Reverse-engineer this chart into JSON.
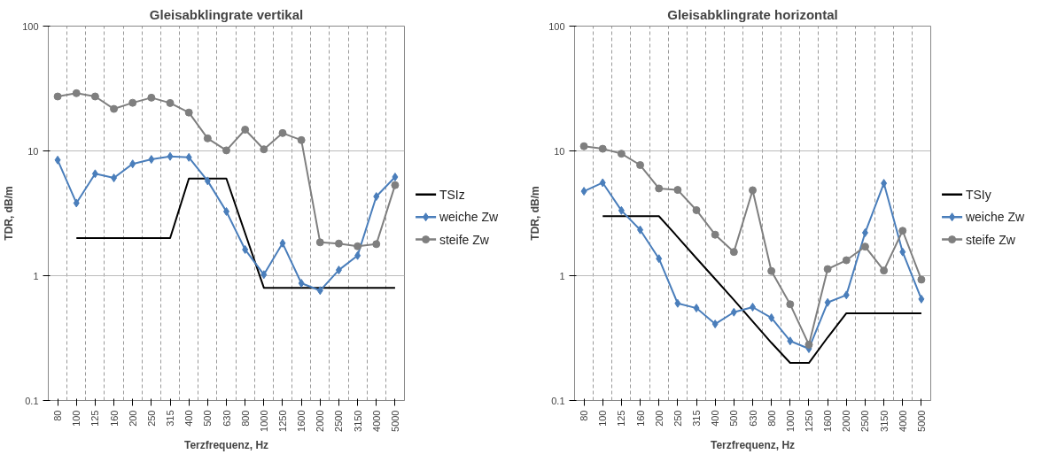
{
  "chart_data": [
    {
      "type": "line",
      "title": "Gleisabklingrate vertikal",
      "xlabel": "Terzfrequenz, Hz",
      "ylabel": "TDR, dB/m",
      "log": true,
      "grid": true,
      "legend": "right",
      "ylim": [
        0.1,
        100
      ],
      "yticks": [
        0.1,
        1,
        10,
        100
      ],
      "categories": [
        "80",
        "100",
        "125",
        "160",
        "200",
        "250",
        "315",
        "400",
        "500",
        "630",
        "800",
        "1000",
        "1250",
        "1600",
        "2000",
        "2500",
        "3150",
        "4000",
        "5000"
      ],
      "series": [
        {
          "name": "TSIz",
          "color": "#000000",
          "marker": "none",
          "values": [
            null,
            2,
            2,
            2,
            2,
            2,
            2,
            6,
            6,
            6,
            2.19,
            0.8,
            0.8,
            0.8,
            0.8,
            0.8,
            0.8,
            0.8,
            0.8
          ]
        },
        {
          "name": "weiche Zw",
          "color": "#4a7ebb",
          "marker": "diamond",
          "values": [
            8.45,
            3.82,
            6.56,
            6.07,
            7.87,
            8.55,
            9.03,
            8.87,
            5.75,
            3.27,
            1.62,
            1.02,
            1.82,
            0.87,
            0.76,
            1.11,
            1.45,
            4.31,
            6.18
          ]
        },
        {
          "name": "steife Zw",
          "color": "#7f7f7f",
          "marker": "circle",
          "values": [
            27.3,
            29,
            27.3,
            21.7,
            24.3,
            26.7,
            24.2,
            20.3,
            12.6,
            10.1,
            14.8,
            10.3,
            13.9,
            12.2,
            1.85,
            1.81,
            1.72,
            1.79,
            5.32
          ]
        }
      ]
    },
    {
      "type": "line",
      "title": "Gleisabklingrate horizontal",
      "xlabel": "Terzfrequenz, Hz",
      "ylabel": "TDR, dB/m",
      "log": true,
      "grid": true,
      "legend": "right",
      "ylim": [
        0.1,
        100
      ],
      "yticks": [
        0.1,
        1,
        10,
        100
      ],
      "categories": [
        "80",
        "100",
        "125",
        "160",
        "200",
        "250",
        "315",
        "400",
        "500",
        "630",
        "800",
        "1000",
        "1250",
        "1600",
        "2000",
        "2500",
        "3150",
        "4000",
        "5000"
      ],
      "series": [
        {
          "name": "TSIy",
          "color": "#000000",
          "marker": "none",
          "values": [
            null,
            3,
            3,
            3,
            3,
            2.04,
            1.38,
            0.94,
            0.64,
            0.43,
            0.29,
            0.2,
            0.2,
            0.32,
            0.5,
            0.5,
            0.5,
            0.5,
            0.5
          ]
        },
        {
          "name": "weiche Zw",
          "color": "#4a7ebb",
          "marker": "diamond",
          "values": [
            4.75,
            5.56,
            3.33,
            2.33,
            1.37,
            0.6,
            0.55,
            0.41,
            0.51,
            0.56,
            0.46,
            0.3,
            0.26,
            0.61,
            0.7,
            2.21,
            5.5,
            1.55,
            0.65
          ]
        },
        {
          "name": "steife Zw",
          "color": "#7f7f7f",
          "marker": "circle",
          "values": [
            10.9,
            10.4,
            9.5,
            7.7,
            5.0,
            4.87,
            3.35,
            2.13,
            1.55,
            4.84,
            1.09,
            0.59,
            0.28,
            1.13,
            1.33,
            1.71,
            1.1,
            2.29,
            0.93
          ]
        }
      ]
    }
  ]
}
